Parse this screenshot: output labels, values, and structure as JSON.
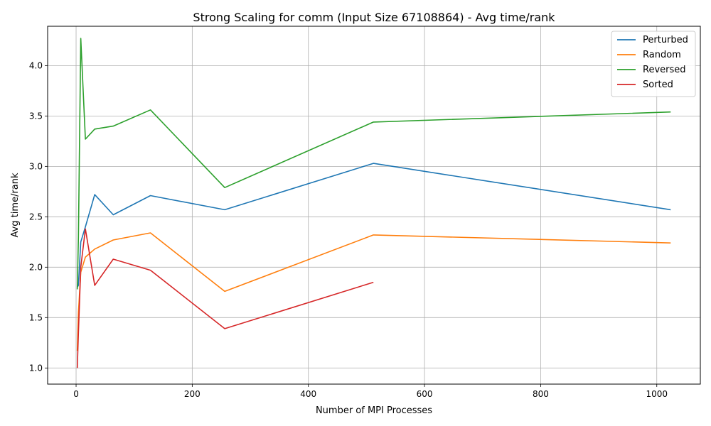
{
  "chart_data": {
    "type": "line",
    "title": "Strong Scaling for comm (Input Size 67108864) - Avg time/rank",
    "xlabel": "Number of MPI Processes",
    "ylabel": "Avg time/rank",
    "xlim": [
      -49,
      1075
    ],
    "ylim": [
      0.84,
      4.39
    ],
    "xticks": [
      0,
      200,
      400,
      600,
      800,
      1000
    ],
    "yticks": [
      1.0,
      1.5,
      2.0,
      2.5,
      3.0,
      3.5,
      4.0
    ],
    "grid": true,
    "legend_position": "top-right",
    "series": [
      {
        "name": "Perturbed",
        "color": "#1f77b4",
        "x": [
          2,
          4,
          8,
          16,
          32,
          64,
          128,
          256,
          512,
          1024
        ],
        "y": [
          1.8,
          1.82,
          2.25,
          2.4,
          2.72,
          2.52,
          2.71,
          2.57,
          3.03,
          2.57
        ]
      },
      {
        "name": "Random",
        "color": "#ff7f0e",
        "x": [
          2,
          4,
          8,
          16,
          32,
          64,
          128,
          256,
          512,
          1024
        ],
        "y": [
          1.17,
          1.55,
          1.95,
          2.1,
          2.18,
          2.27,
          2.34,
          1.76,
          2.32,
          2.24
        ]
      },
      {
        "name": "Reversed",
        "color": "#2ca02c",
        "x": [
          2,
          4,
          8,
          16,
          32,
          64,
          128,
          256,
          512,
          1024
        ],
        "y": [
          1.78,
          2.3,
          4.27,
          3.27,
          3.37,
          3.4,
          3.56,
          2.79,
          3.44,
          3.54
        ]
      },
      {
        "name": "Sorted",
        "color": "#d62728",
        "x": [
          2,
          4,
          8,
          16,
          32,
          64,
          128,
          256,
          512
        ],
        "y": [
          1.0,
          1.35,
          2.0,
          2.38,
          1.82,
          2.08,
          1.97,
          1.39,
          1.85
        ]
      }
    ]
  }
}
